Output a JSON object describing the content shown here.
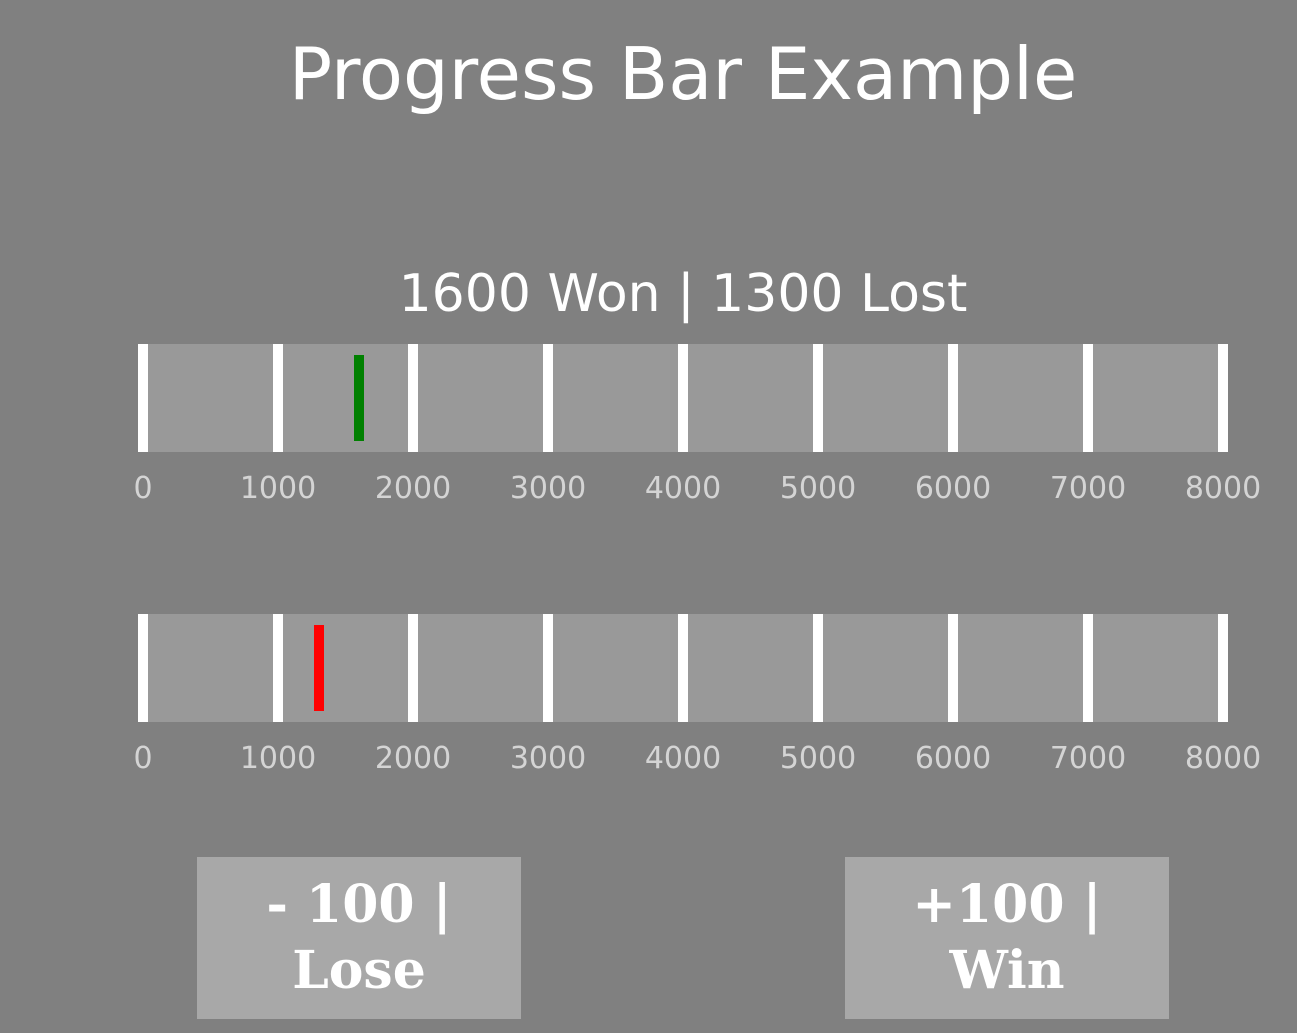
{
  "title": "Progress Bar Example",
  "status_text": "1600 Won | 1300 Lost",
  "scale": {
    "min": 0,
    "max": 8000,
    "ticks": [
      "0",
      "1000",
      "2000",
      "3000",
      "4000",
      "5000",
      "6000",
      "7000",
      "8000"
    ]
  },
  "bars": [
    {
      "value": 1600,
      "color": "#008000"
    },
    {
      "value": 1300,
      "color": "#ff0000"
    }
  ],
  "buttons": {
    "lose": {
      "line1": "- 100 |",
      "line2": "Lose"
    },
    "win": {
      "line1": "+100 |",
      "line2": "Win"
    }
  },
  "colors": {
    "background": "#808080",
    "bar_track": "#999999",
    "tick": "#ffffff",
    "button": "#a8a8a8"
  }
}
